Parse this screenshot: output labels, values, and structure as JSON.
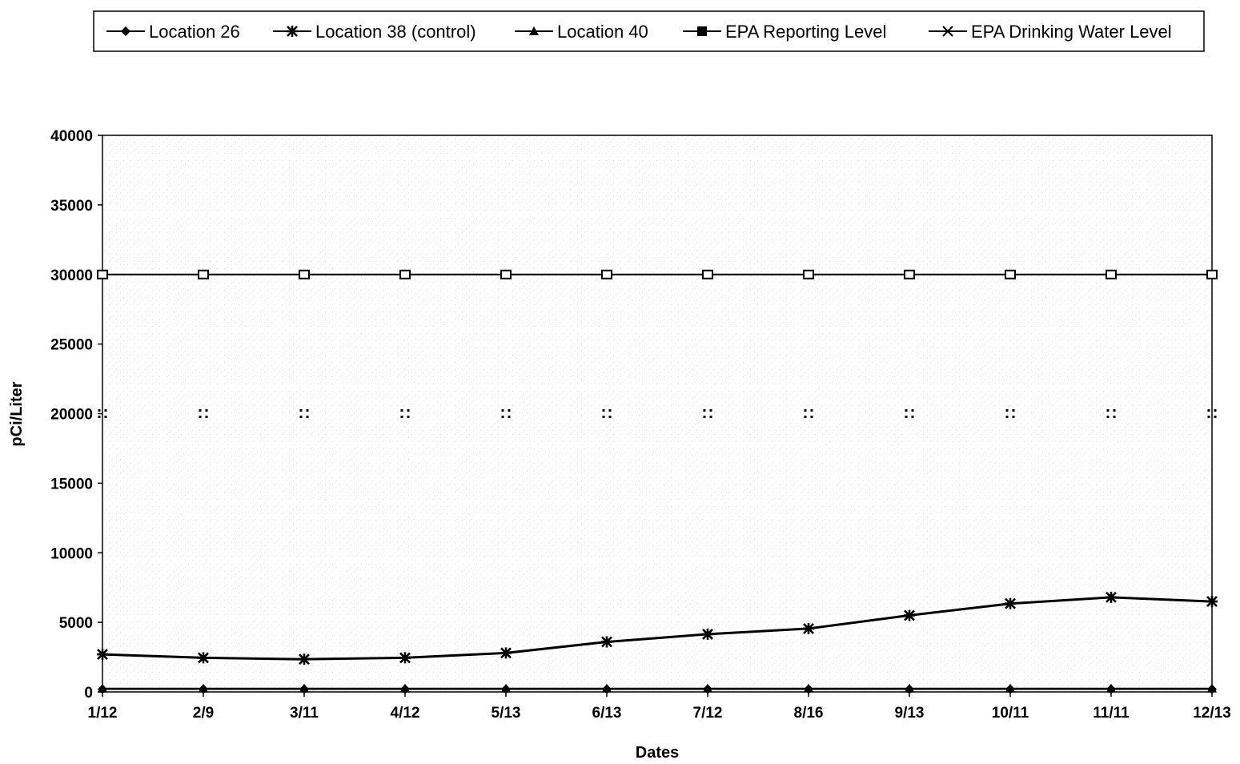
{
  "chart_data": {
    "type": "line",
    "title": "",
    "xlabel": "Dates",
    "ylabel": "pCi/Liter",
    "categories": [
      "1/12",
      "2/9",
      "3/11",
      "4/12",
      "5/13",
      "6/13",
      "7/12",
      "8/16",
      "9/13",
      "10/11",
      "11/11",
      "12/13"
    ],
    "ylim": [
      0,
      40000
    ],
    "yticks": [
      "0",
      "5000",
      "10000",
      "15000",
      "20000",
      "25000",
      "30000",
      "35000",
      "40000"
    ],
    "legend_position": "top",
    "grid": false,
    "series": [
      {
        "name": "Location 26",
        "marker": "diamond",
        "values": [
          200,
          200,
          200,
          200,
          200,
          200,
          200,
          200,
          200,
          200,
          200,
          200
        ]
      },
      {
        "name": "Location 38 (control)",
        "marker": "asterisk",
        "values": [
          2700,
          2450,
          2350,
          2450,
          2800,
          3600,
          4150,
          4550,
          5500,
          6350,
          6800,
          6500
        ]
      },
      {
        "name": "Location 40",
        "marker": "triangle",
        "values": [
          250,
          250,
          250,
          250,
          250,
          250,
          250,
          250,
          250,
          250,
          250,
          250
        ]
      },
      {
        "name": "EPA Reporting Level",
        "marker": "square",
        "values": [
          30000,
          30000,
          30000,
          30000,
          30000,
          30000,
          30000,
          30000,
          30000,
          30000,
          30000,
          30000
        ]
      },
      {
        "name": "EPA Drinking Water Level",
        "marker": "x",
        "values": [
          20000,
          20000,
          20000,
          20000,
          20000,
          20000,
          20000,
          20000,
          20000,
          20000,
          20000,
          20000
        ]
      }
    ]
  }
}
